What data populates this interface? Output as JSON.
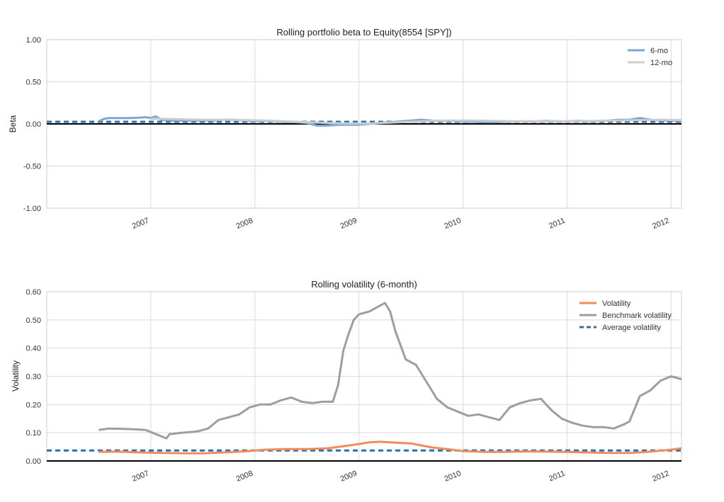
{
  "chart_data": [
    {
      "type": "line",
      "title": "Rolling portfolio beta to Equity(8554 [SPY])",
      "ylabel": "Beta",
      "xlabel": "",
      "xlim": [
        2006.0,
        2012.1
      ],
      "ylim": [
        -1.0,
        1.0
      ],
      "yticks": [
        1.0,
        0.5,
        0.0,
        -0.5,
        -1.0
      ],
      "ytick_labels": [
        "1.00",
        "0.50",
        "0.00",
        "-0.50",
        "-1.00"
      ],
      "xticks": [
        2007,
        2008,
        2009,
        2010,
        2011,
        2012
      ],
      "xtick_labels": [
        "2007",
        "2008",
        "2009",
        "2010",
        "2011",
        "2012"
      ],
      "grid": true,
      "legend_position": "top-right",
      "legend": [
        "6-mo",
        "12-mo"
      ],
      "series": [
        {
          "name": "6-mo",
          "color": "#7ba7d4",
          "x": [
            2006.5,
            2006.55,
            2006.6,
            2006.7,
            2006.8,
            2006.9,
            2006.95,
            2007.0,
            2007.05,
            2007.1,
            2007.2,
            2007.3,
            2007.4,
            2007.5,
            2007.6,
            2007.7,
            2007.8,
            2007.9,
            2008.0,
            2008.1,
            2008.2,
            2008.3,
            2008.4,
            2008.5,
            2008.6,
            2008.7,
            2008.8,
            2008.9,
            2009.0,
            2009.1,
            2009.2,
            2009.3,
            2009.4,
            2009.5,
            2009.6,
            2009.7,
            2009.8,
            2009.9,
            2010.0,
            2010.1,
            2010.2,
            2010.3,
            2010.4,
            2010.5,
            2010.6,
            2010.7,
            2010.8,
            2010.9,
            2011.0,
            2011.1,
            2011.2,
            2011.3,
            2011.4,
            2011.5,
            2011.6,
            2011.7,
            2011.8,
            2011.9,
            2012.0,
            2012.1
          ],
          "values": [
            0.03,
            0.06,
            0.07,
            0.07,
            0.07,
            0.075,
            0.08,
            0.07,
            0.09,
            0.05,
            0.04,
            0.04,
            0.04,
            0.04,
            0.04,
            0.05,
            0.05,
            0.04,
            0.03,
            0.035,
            0.03,
            0.02,
            0.02,
            0.01,
            -0.02,
            -0.02,
            -0.01,
            -0.01,
            -0.01,
            0.0,
            0.01,
            0.02,
            0.03,
            0.04,
            0.05,
            0.04,
            0.035,
            0.035,
            0.03,
            0.025,
            0.02,
            0.02,
            0.025,
            0.03,
            0.03,
            0.03,
            0.035,
            0.03,
            0.03,
            0.035,
            0.03,
            0.035,
            0.04,
            0.05,
            0.05,
            0.07,
            0.05,
            0.04,
            0.04,
            0.035
          ]
        },
        {
          "name": "12-mo",
          "color": "#cccccc",
          "x": [
            2007.0,
            2007.1,
            2007.3,
            2007.5,
            2007.7,
            2007.9,
            2008.1,
            2008.3,
            2008.5,
            2008.7,
            2008.9,
            2009.1,
            2009.3,
            2009.5,
            2009.7,
            2009.9,
            2010.1,
            2010.3,
            2010.5,
            2010.7,
            2010.9,
            2011.1,
            2011.3,
            2011.5,
            2011.7,
            2011.9,
            2012.1
          ],
          "values": [
            0.06,
            0.06,
            0.055,
            0.05,
            0.05,
            0.045,
            0.04,
            0.03,
            0.02,
            0.01,
            0.005,
            0.005,
            0.015,
            0.025,
            0.035,
            0.04,
            0.04,
            0.035,
            0.03,
            0.03,
            0.03,
            0.03,
            0.035,
            0.04,
            0.045,
            0.05,
            0.045
          ]
        }
      ],
      "reference_lines": [
        {
          "kind": "average",
          "y": 0.025,
          "color": "#2f6fa7",
          "style": "dashed"
        },
        {
          "kind": "zero",
          "y": 0.0,
          "color": "#000000",
          "style": "solid"
        }
      ]
    },
    {
      "type": "line",
      "title": "Rolling volatility (6-month)",
      "ylabel": "Volatility",
      "xlabel": "",
      "xlim": [
        2006.0,
        2012.1
      ],
      "ylim": [
        0.0,
        0.6
      ],
      "yticks": [
        0.6,
        0.5,
        0.4,
        0.3,
        0.2,
        0.1,
        0.0
      ],
      "ytick_labels": [
        "0.60",
        "0.50",
        "0.40",
        "0.30",
        "0.20",
        "0.10",
        "0.00"
      ],
      "xticks": [
        2007,
        2008,
        2009,
        2010,
        2011,
        2012
      ],
      "xtick_labels": [
        "2007",
        "2008",
        "2009",
        "2010",
        "2011",
        "2012"
      ],
      "grid": true,
      "legend_position": "top-right",
      "legend": [
        "Volatility",
        "Benchmark volatility",
        "Average volatility"
      ],
      "series": [
        {
          "name": "Volatility",
          "color": "#f28b5b",
          "x": [
            2006.5,
            2006.7,
            2006.9,
            2007.1,
            2007.3,
            2007.5,
            2007.7,
            2007.9,
            2008.1,
            2008.3,
            2008.5,
            2008.7,
            2008.85,
            2009.0,
            2009.1,
            2009.2,
            2009.3,
            2009.4,
            2009.5,
            2009.6,
            2009.7,
            2009.85,
            2010.0,
            2010.2,
            2010.4,
            2010.6,
            2010.8,
            2011.0,
            2011.2,
            2011.4,
            2011.6,
            2011.8,
            2012.0,
            2012.1
          ],
          "values": [
            0.032,
            0.033,
            0.03,
            0.028,
            0.027,
            0.027,
            0.03,
            0.034,
            0.04,
            0.042,
            0.042,
            0.045,
            0.052,
            0.06,
            0.066,
            0.068,
            0.066,
            0.064,
            0.062,
            0.055,
            0.048,
            0.042,
            0.035,
            0.032,
            0.032,
            0.034,
            0.033,
            0.032,
            0.03,
            0.028,
            0.028,
            0.033,
            0.04,
            0.045
          ]
        },
        {
          "name": "Benchmark volatility",
          "color": "#9e9e9e",
          "x": [
            2006.5,
            2006.6,
            2006.8,
            2006.95,
            2007.05,
            2007.15,
            2007.18,
            2007.3,
            2007.45,
            2007.55,
            2007.65,
            2007.75,
            2007.85,
            2007.95,
            2008.05,
            2008.15,
            2008.25,
            2008.35,
            2008.45,
            2008.55,
            2008.65,
            2008.75,
            2008.8,
            2008.85,
            2008.9,
            2008.95,
            2009.0,
            2009.1,
            2009.2,
            2009.25,
            2009.3,
            2009.35,
            2009.45,
            2009.55,
            2009.65,
            2009.75,
            2009.85,
            2009.95,
            2010.05,
            2010.15,
            2010.25,
            2010.35,
            2010.45,
            2010.55,
            2010.65,
            2010.75,
            2010.85,
            2010.95,
            2011.05,
            2011.15,
            2011.25,
            2011.35,
            2011.45,
            2011.55,
            2011.6,
            2011.7,
            2011.8,
            2011.9,
            2012.0,
            2012.1
          ],
          "values": [
            0.11,
            0.115,
            0.113,
            0.11,
            0.095,
            0.08,
            0.095,
            0.1,
            0.105,
            0.115,
            0.145,
            0.155,
            0.165,
            0.19,
            0.2,
            0.2,
            0.215,
            0.225,
            0.21,
            0.205,
            0.21,
            0.21,
            0.27,
            0.39,
            0.45,
            0.5,
            0.52,
            0.53,
            0.55,
            0.56,
            0.53,
            0.46,
            0.36,
            0.34,
            0.28,
            0.22,
            0.19,
            0.175,
            0.16,
            0.165,
            0.155,
            0.145,
            0.19,
            0.205,
            0.215,
            0.22,
            0.18,
            0.15,
            0.135,
            0.125,
            0.12,
            0.12,
            0.115,
            0.13,
            0.14,
            0.23,
            0.25,
            0.285,
            0.3,
            0.29
          ]
        }
      ],
      "reference_lines": [
        {
          "kind": "average",
          "name": "Average volatility",
          "y": 0.037,
          "color": "#2f6fa7",
          "style": "dashed"
        },
        {
          "kind": "zero",
          "y": 0.0,
          "color": "#000000",
          "style": "solid"
        }
      ]
    }
  ]
}
